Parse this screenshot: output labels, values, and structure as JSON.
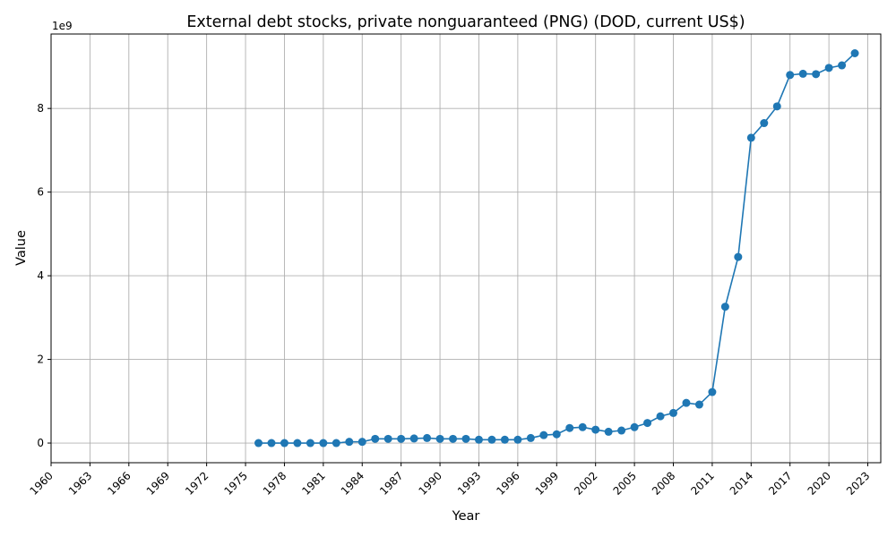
{
  "chart_data": {
    "type": "line",
    "title": "External debt stocks, private nonguaranteed (PNG) (DOD, current US$)",
    "xlabel": "Year",
    "ylabel": "Value",
    "y_offset_label": "1e9",
    "xlim": [
      1960,
      2024
    ],
    "ylim": [
      -0.47,
      9.78
    ],
    "y_scale_note": "values in units of 1e9 US$",
    "x_ticks": [
      1960,
      1963,
      1966,
      1969,
      1972,
      1975,
      1978,
      1981,
      1984,
      1987,
      1990,
      1993,
      1996,
      1999,
      2002,
      2005,
      2008,
      2011,
      2014,
      2017,
      2020,
      2023
    ],
    "y_ticks": [
      0,
      2,
      4,
      6,
      8
    ],
    "grid": true,
    "color": "#1f77b4",
    "series": [
      {
        "x": [
          1976,
          1977,
          1978,
          1979,
          1980,
          1981,
          1982,
          1983,
          1984,
          1985,
          1986,
          1987,
          1988,
          1989,
          1990,
          1991,
          1992,
          1993,
          1994,
          1995,
          1996,
          1997,
          1998,
          1999,
          2000,
          2001,
          2002,
          2003,
          2004,
          2005,
          2006,
          2007,
          2008,
          2009,
          2010,
          2011,
          2012,
          2013,
          2014,
          2015,
          2016,
          2017,
          2018,
          2019,
          2020,
          2021,
          2022
        ],
        "y": [
          0.0,
          0.0,
          0.0,
          0.0,
          0.0,
          0.0,
          0.0,
          0.03,
          0.03,
          0.1,
          0.1,
          0.1,
          0.11,
          0.12,
          0.1,
          0.1,
          0.1,
          0.08,
          0.08,
          0.08,
          0.08,
          0.12,
          0.19,
          0.21,
          0.36,
          0.38,
          0.32,
          0.27,
          0.3,
          0.38,
          0.48,
          0.64,
          0.72,
          0.96,
          0.92,
          1.22,
          3.26,
          4.45,
          7.3,
          7.65,
          8.05,
          8.8,
          8.83,
          8.82,
          8.97,
          9.03,
          9.32
        ]
      }
    ]
  }
}
